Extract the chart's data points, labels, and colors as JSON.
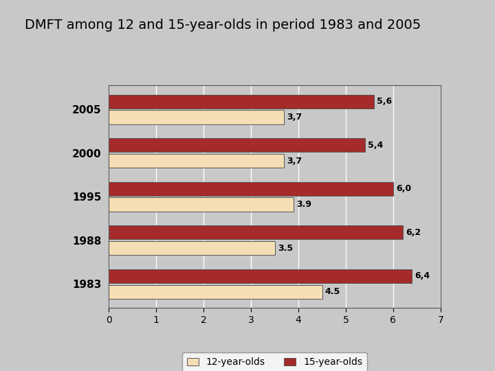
{
  "title": "DMFT among 12 and 15-year-olds in period 1983 and 2005",
  "years": [
    "2005",
    "2000",
    "1995",
    "1988",
    "1983"
  ],
  "values_12": [
    3.7,
    3.7,
    3.9,
    3.5,
    4.5
  ],
  "values_15": [
    5.6,
    5.4,
    6.0,
    6.2,
    6.4
  ],
  "labels_12": [
    "3,7",
    "3,7",
    "3.9",
    "3.5",
    "4.5"
  ],
  "labels_15": [
    "5,6",
    "5,4",
    "6,0",
    "6,2",
    "6,4"
  ],
  "color_12": "#F5DEB3",
  "color_15": "#A52A2A",
  "bar_edge_color": "#555555",
  "xlim": [
    0,
    7
  ],
  "xticks": [
    0,
    1,
    2,
    3,
    4,
    5,
    6,
    7
  ],
  "legend_12": "12-year-olds",
  "legend_15": "15-year-olds",
  "background_color": "#C8C8C8",
  "plot_bg_color": "#C8C8C8",
  "title_fontsize": 14,
  "label_fontsize": 9,
  "tick_fontsize": 10,
  "legend_fontsize": 10,
  "year_fontsize": 11
}
